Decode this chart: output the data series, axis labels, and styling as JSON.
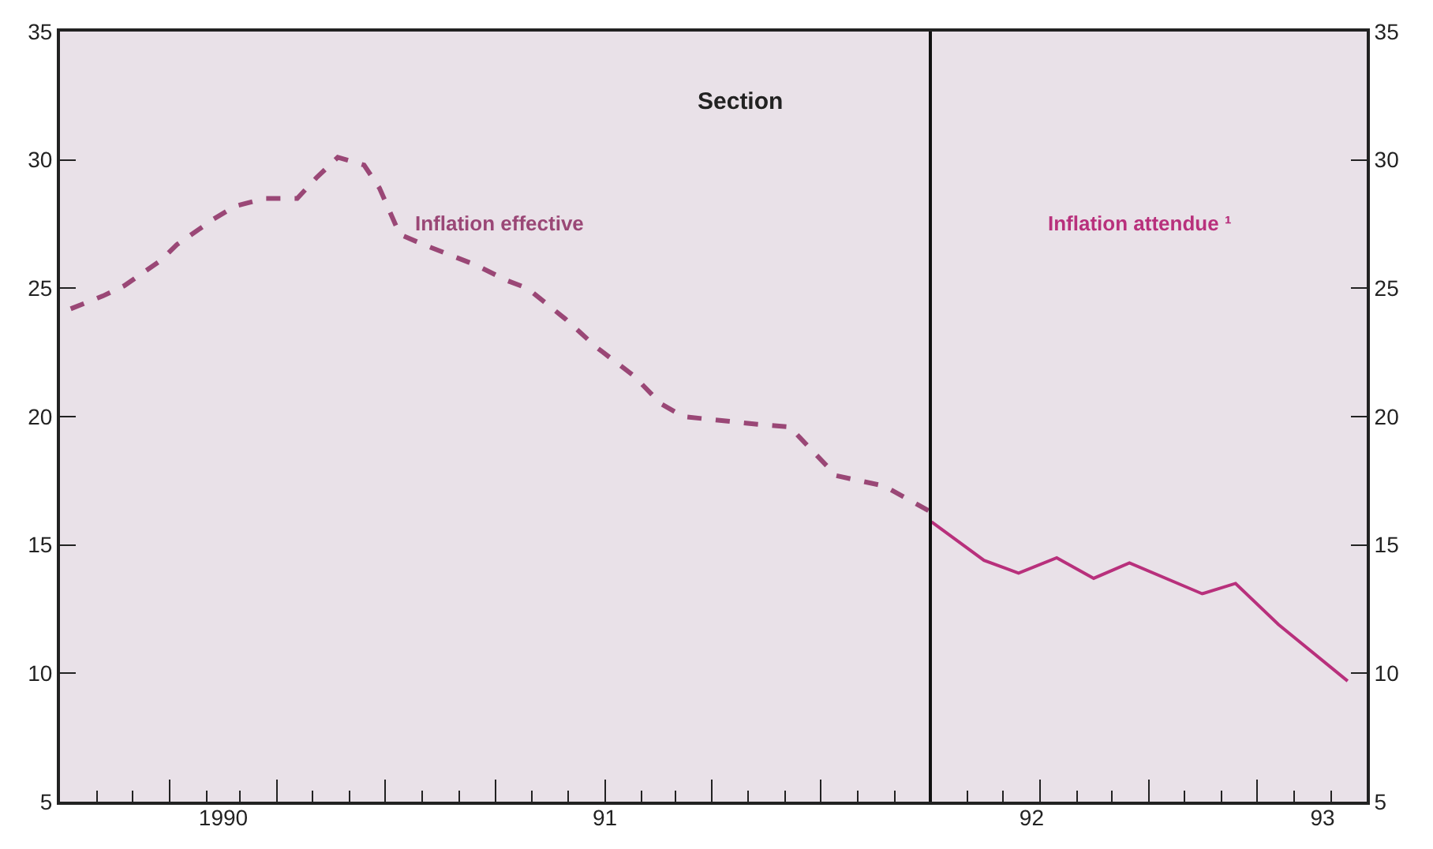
{
  "chart_data": {
    "type": "line",
    "title": "Section",
    "series": [
      {
        "name": "Inflation effective",
        "color": "#9a4776",
        "line_style": "dashed",
        "x": [
          "1989-10-10",
          "1989-11-06",
          "1989-11-24",
          "1989-12-25",
          "1990-01-07",
          "1990-02-07",
          "1990-02-25",
          "1990-03-22",
          "1990-04-18",
          "1990-05-04",
          "1990-05-22",
          "1990-06-13",
          "1990-06-26",
          "1990-07-13",
          "1990-08-02",
          "1990-09-15",
          "1990-10-11",
          "1990-10-28",
          "1990-11-29",
          "1990-12-25",
          "1991-01-25",
          "1991-02-17",
          "1991-03-08",
          "1991-05-09",
          "1991-06-05",
          "1991-07-14",
          "1991-08-23",
          "1991-10-01"
        ],
        "values": [
          24.2,
          24.7,
          25.1,
          26.1,
          26.7,
          27.7,
          28.2,
          28.5,
          28.5,
          29.3,
          30.1,
          29.8,
          28.9,
          27.1,
          26.7,
          25.9,
          25.3,
          25.0,
          23.8,
          22.7,
          21.6,
          20.5,
          20.0,
          19.7,
          19.6,
          17.7,
          17.3,
          16.3
        ]
      },
      {
        "name": "Inflation attendue ¹",
        "color": "#b8307c",
        "line_style": "solid",
        "axis": "y2",
        "x": [
          "1991-10-02",
          "1991-11-15",
          "1991-12-14",
          "1992-01-15",
          "1992-02-15",
          "1992-03-16",
          "1992-05-16",
          "1992-06-13",
          "1992-07-19",
          "1992-09-15"
        ],
        "values": [
          15.9,
          14.4,
          13.9,
          14.5,
          13.7,
          14.3,
          13.1,
          13.5,
          11.9,
          9.7
        ]
      }
    ],
    "xlim": [
      "1989-10-01",
      "1992-10-01"
    ],
    "xticks": [
      {
        "value": "1990-02-15",
        "label": "1990"
      },
      {
        "value": "1991-01-01",
        "label": "91"
      },
      {
        "value": "1991-12-25",
        "label": "92"
      },
      {
        "value": "1992-08-25",
        "label": "93"
      },
      {
        "value": "1990-01-01",
        "label": null
      },
      {
        "value": "1990-04-01",
        "label": null
      },
      {
        "value": "1990-07-01",
        "label": null
      },
      {
        "value": "1990-10-01",
        "label": null
      },
      {
        "value": "1991-01-01",
        "label": null
      },
      {
        "value": "1991-04-01",
        "label": null
      },
      {
        "value": "1991-07-01",
        "label": null
      },
      {
        "value": "1992-01-01",
        "label": null
      },
      {
        "value": "1992-04-01",
        "label": null
      },
      {
        "value": "1992-07-01",
        "label": null
      }
    ],
    "ylim": [
      5,
      35
    ],
    "yticks": [
      5,
      10,
      15,
      20,
      25,
      30,
      35
    ],
    "y2lim": [
      5,
      35
    ],
    "y2ticks": [
      5,
      10,
      15,
      20,
      25,
      30,
      35
    ],
    "ref_lines": [
      {
        "axis": "x",
        "value": "1991-10-01",
        "color": "#111111",
        "line_style": "solid"
      }
    ],
    "grid": false,
    "legend": false,
    "marker": "none"
  }
}
